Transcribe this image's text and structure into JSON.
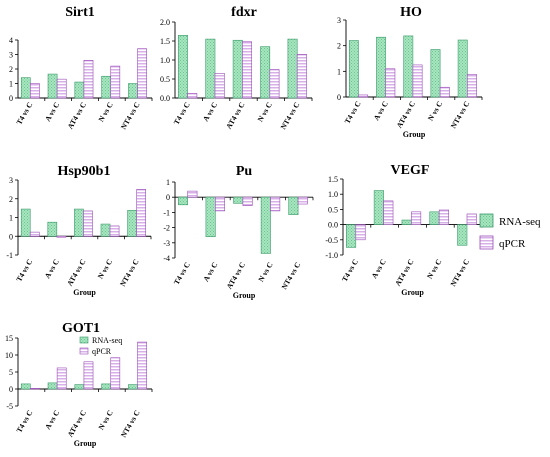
{
  "colors": {
    "rna": "#a8e6c0",
    "rna_stroke": "#3a9a6a",
    "qpcr": "#d8b0e8",
    "qpcr_stroke": "#9a4ab8"
  },
  "legend": {
    "series1": "RNA-seq",
    "series2": "qPCR"
  },
  "chart_data": [
    {
      "type": "bar",
      "title": "Sirt1",
      "xlabel": "",
      "categories": [
        "T4 vs C",
        "A vs C",
        "AT4 vs C",
        "N vs C",
        "NT4 vs C"
      ],
      "ylim": [
        0,
        4
      ],
      "yticks": [
        "0",
        "1",
        "2",
        "3",
        "4"
      ],
      "series": [
        {
          "name": "RNA-seq",
          "values": [
            1.4,
            1.65,
            1.1,
            1.5,
            1.0
          ]
        },
        {
          "name": "qPCR",
          "values": [
            1.0,
            1.3,
            2.6,
            2.2,
            3.4
          ]
        }
      ]
    },
    {
      "type": "bar",
      "title": "fdxr",
      "xlabel": "",
      "categories": [
        "T4 vs C",
        "A vs C",
        "AT4 vs C",
        "N vs C",
        "NT4 vs C"
      ],
      "ylim": [
        0,
        2.0
      ],
      "yticks": [
        "0.0",
        "0.5",
        "1.0",
        "1.5",
        "2.0"
      ],
      "series": [
        {
          "name": "RNA-seq",
          "values": [
            1.65,
            1.55,
            1.52,
            1.35,
            1.55
          ]
        },
        {
          "name": "qPCR",
          "values": [
            0.12,
            0.65,
            1.48,
            0.75,
            1.15
          ]
        }
      ]
    },
    {
      "type": "bar",
      "title": "HO",
      "xlabel": "Group",
      "categories": [
        "T4 vs C",
        "A vs C",
        "AT4 vs C",
        "N vs C",
        "NT4 vs C"
      ],
      "ylim": [
        0,
        3
      ],
      "yticks": [
        "0",
        "1",
        "2",
        "3"
      ],
      "series": [
        {
          "name": "RNA-seq",
          "values": [
            2.2,
            2.33,
            2.38,
            1.85,
            2.22
          ]
        },
        {
          "name": "qPCR",
          "values": [
            0.08,
            1.1,
            1.25,
            0.38,
            0.88
          ]
        }
      ]
    },
    {
      "type": "bar",
      "title": "Hsp90b1",
      "xlabel": "Group",
      "categories": [
        "T4 vs C",
        "A vs C",
        "AT4 vs C",
        "N vs C",
        "NT4 vs C"
      ],
      "ylim": [
        -1,
        3
      ],
      "yticks": [
        "-1",
        "0",
        "1",
        "2",
        "3"
      ],
      "series": [
        {
          "name": "RNA-seq",
          "values": [
            1.45,
            0.75,
            1.45,
            0.65,
            1.38
          ]
        },
        {
          "name": "qPCR",
          "values": [
            0.22,
            -0.05,
            1.35,
            0.55,
            2.5
          ]
        }
      ]
    },
    {
      "type": "bar",
      "title": "Pu",
      "xlabel": "Group",
      "categories": [
        "T4 vs C",
        "A vs C",
        "AT4 vs C",
        "N vs C",
        "NT4 vs C"
      ],
      "ylim": [
        -4,
        1
      ],
      "yticks": [
        "-4",
        "-3",
        "-2",
        "-1",
        "0",
        "1"
      ],
      "series": [
        {
          "name": "RNA-seq",
          "values": [
            -0.5,
            -2.6,
            -0.4,
            -3.7,
            -1.15
          ]
        },
        {
          "name": "qPCR",
          "values": [
            0.4,
            -0.9,
            -0.55,
            -0.9,
            -0.45
          ]
        }
      ]
    },
    {
      "type": "bar",
      "title": "VEGF",
      "xlabel": "Group",
      "categories": [
        "T4 vs C",
        "A vs C",
        "AT4 vs C",
        "N vs C",
        "NT4 vs C"
      ],
      "ylim": [
        -1.0,
        1.5
      ],
      "yticks": [
        "-1.0",
        "-0.5",
        "0.0",
        "0.5",
        "1.0",
        "1.5"
      ],
      "series": [
        {
          "name": "RNA-seq",
          "values": [
            -0.75,
            1.12,
            0.15,
            0.42,
            -0.68
          ]
        },
        {
          "name": "qPCR",
          "values": [
            -0.5,
            0.78,
            0.42,
            0.48,
            0.35
          ]
        }
      ]
    },
    {
      "type": "bar",
      "title": "GOT1",
      "xlabel": "Group",
      "categories": [
        "T4 vs C",
        "A vs C",
        "AT4 vs C",
        "N vs C",
        "NT4 vs C"
      ],
      "ylim": [
        -5,
        15
      ],
      "yticks": [
        "-5",
        "0",
        "5",
        "10",
        "15"
      ],
      "series": [
        {
          "name": "RNA-seq",
          "values": [
            1.5,
            1.8,
            1.3,
            1.5,
            1.3
          ]
        },
        {
          "name": "qPCR",
          "values": [
            0.2,
            6.2,
            8.0,
            9.2,
            13.8
          ]
        }
      ]
    }
  ]
}
